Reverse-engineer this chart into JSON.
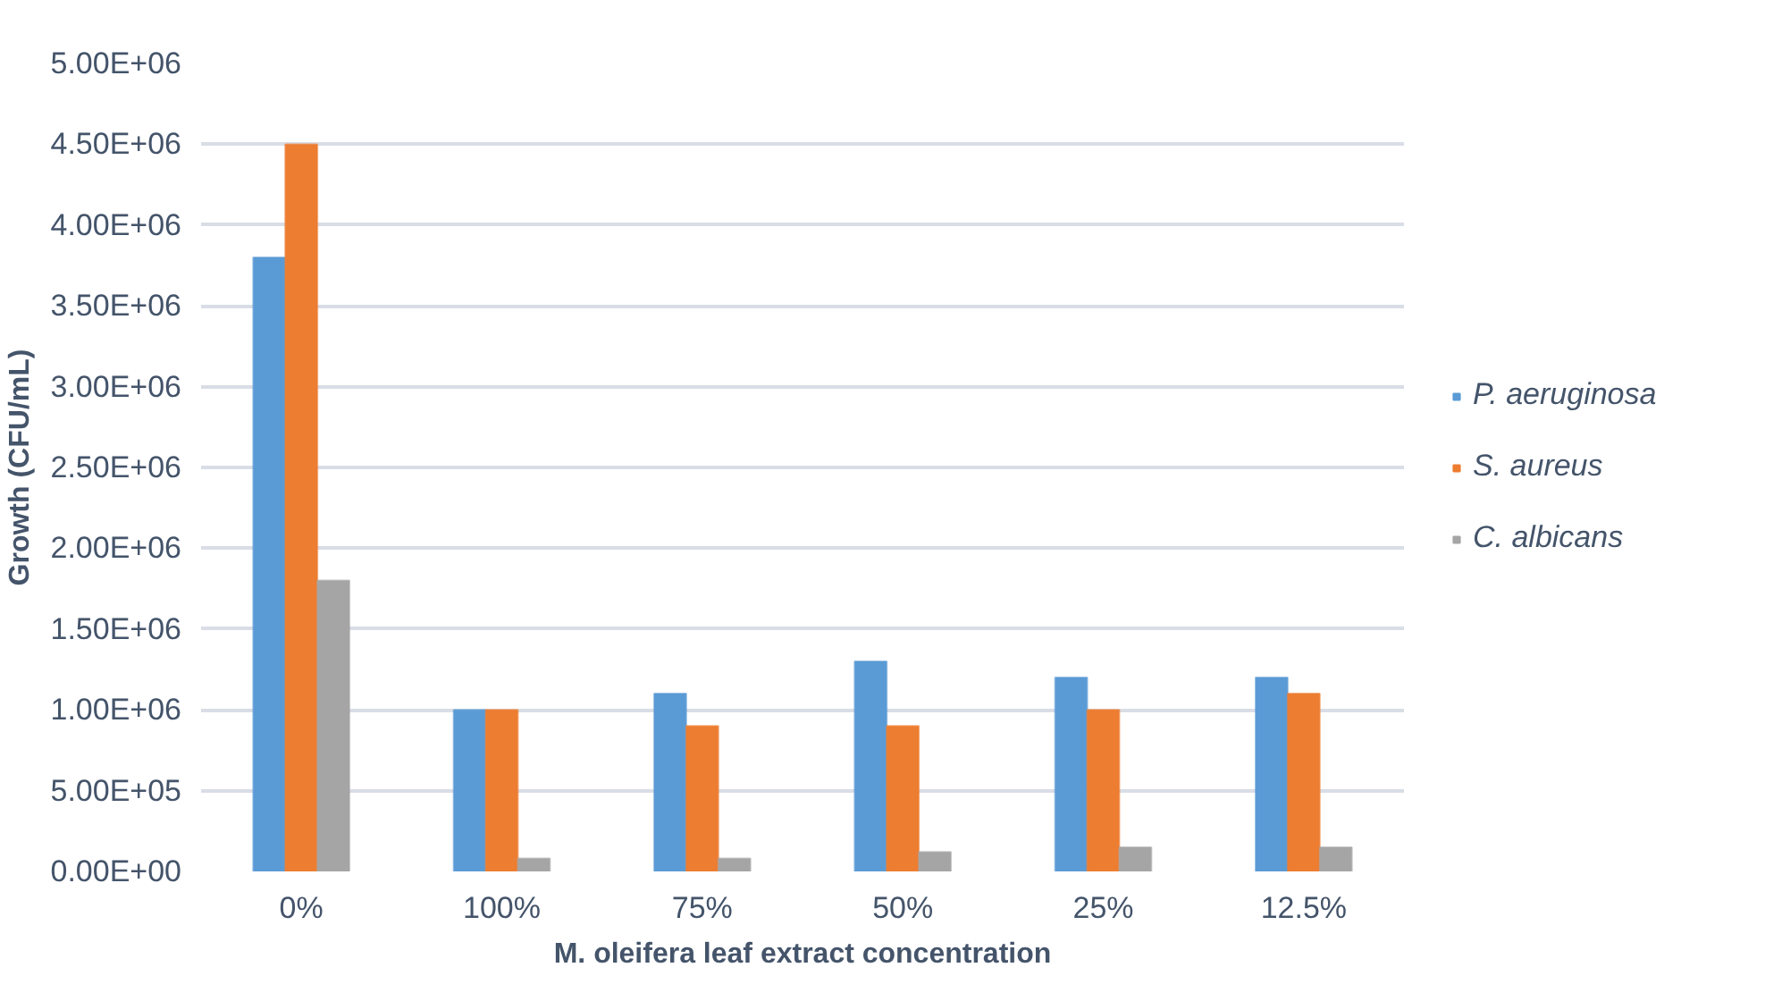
{
  "chart_data": {
    "type": "bar",
    "xlabel": "M. oleifera leaf extract concentration",
    "ylabel": "Growth (CFU/mL)",
    "categories": [
      "0%",
      "100%",
      "75%",
      "50%",
      "25%",
      "12.5%"
    ],
    "series": [
      {
        "name": "P. aeruginosa",
        "color": "#5b9bd5",
        "values": [
          3800000,
          1000000,
          1100000,
          1300000,
          1200000,
          1200000
        ]
      },
      {
        "name": "S. aureus",
        "color": "#ed7d31",
        "values": [
          4500000,
          1000000,
          900000,
          900000,
          1000000,
          1100000
        ]
      },
      {
        "name": "C. albicans",
        "color": "#a5a5a5",
        "values": [
          1800000,
          80000,
          80000,
          120000,
          150000,
          150000
        ]
      }
    ],
    "ylim": [
      0,
      5000000
    ],
    "yticks": [
      {
        "value": 0,
        "label": "0.00E+00"
      },
      {
        "value": 500000,
        "label": "5.00E+05"
      },
      {
        "value": 1000000,
        "label": "1.00E+06"
      },
      {
        "value": 1500000,
        "label": "1.50E+06"
      },
      {
        "value": 2000000,
        "label": "2.00E+06"
      },
      {
        "value": 2500000,
        "label": "2.50E+06"
      },
      {
        "value": 3000000,
        "label": "3.00E+06"
      },
      {
        "value": 3500000,
        "label": "3.50E+06"
      },
      {
        "value": 4000000,
        "label": "4.00E+06"
      },
      {
        "value": 4500000,
        "label": "4.50E+06"
      },
      {
        "value": 5000000,
        "label": "5.00E+06"
      }
    ],
    "grid": "y",
    "legend": "right"
  }
}
